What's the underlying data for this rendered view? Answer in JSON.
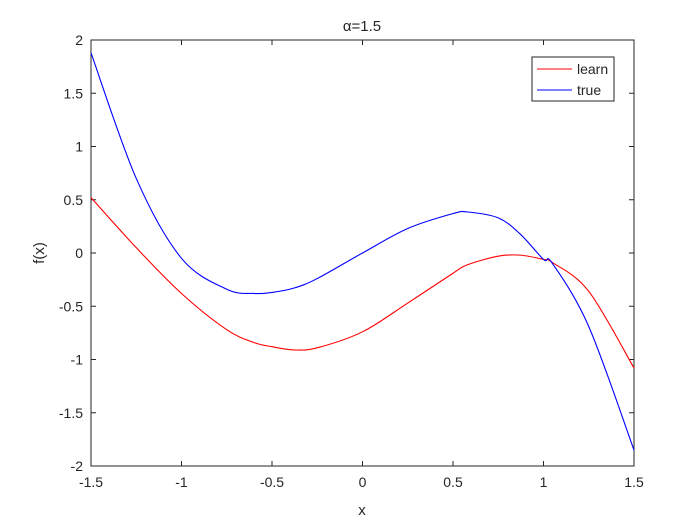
{
  "chart_data": {
    "type": "line",
    "title": "α=1.5",
    "xlabel": "x",
    "ylabel": "f(x)",
    "xlim": [
      -1.5,
      1.5
    ],
    "ylim": [
      -2,
      2
    ],
    "xticks": [
      -1.5,
      -1,
      -0.5,
      0,
      0.5,
      1,
      1.5
    ],
    "yticks": [
      -2,
      -1.5,
      -1,
      -0.5,
      0,
      0.5,
      1,
      1.5,
      2
    ],
    "xtick_labels": [
      "-1.5",
      "-1",
      "-0.5",
      "0",
      "0.5",
      "1",
      "1.5"
    ],
    "ytick_labels": [
      "-2",
      "-1.5",
      "-1",
      "-0.5",
      "0",
      "0.5",
      "1",
      "1.5",
      "2"
    ],
    "grid": false,
    "legend_position": "top-right",
    "x": [
      -1.5,
      -1.25,
      -1.0,
      -0.75,
      -0.6,
      -0.5,
      -0.38,
      -0.25,
      0.0,
      0.25,
      0.5,
      0.58,
      0.75,
      0.87,
      1.0,
      1.05,
      1.25,
      1.5
    ],
    "series": [
      {
        "name": "learn",
        "color": "#ff0000",
        "values": [
          0.52,
          0.05,
          -0.38,
          -0.72,
          -0.84,
          -0.88,
          -0.91,
          -0.89,
          -0.74,
          -0.47,
          -0.19,
          -0.11,
          -0.03,
          -0.02,
          -0.06,
          -0.09,
          -0.36,
          -1.08
        ]
      },
      {
        "name": "true",
        "color": "#0000ff",
        "values": [
          1.88,
          0.7,
          -0.05,
          -0.34,
          -0.38,
          -0.37,
          -0.33,
          -0.24,
          0.0,
          0.23,
          0.37,
          0.385,
          0.33,
          0.18,
          -0.06,
          -0.1,
          -0.69,
          -1.85
        ]
      }
    ]
  }
}
